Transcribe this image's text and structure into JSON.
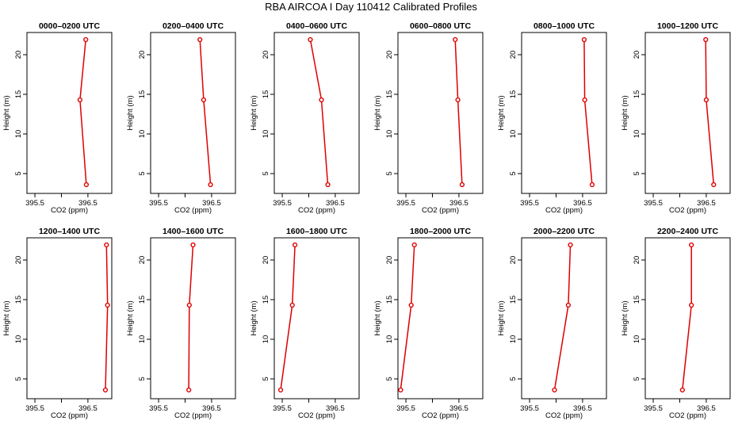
{
  "title": "RBA AIRCOA I  Day 110412  Calibrated Profiles",
  "xlabel": "CO2 (ppm)",
  "ylabel": "Height (m)",
  "line_color": "#dd0000",
  "chart_data": {
    "type": "line",
    "xlim": [
      395.35,
      396.95
    ],
    "ylim": [
      2.5,
      22.8
    ],
    "xticks": [
      395.5,
      396,
      396.5
    ],
    "xtick_labels": [
      "395.5",
      "",
      "396.5"
    ],
    "yticks": [
      5,
      10,
      15,
      20
    ],
    "ytick_labels": [
      "5",
      "10",
      "15",
      "20"
    ],
    "panels": [
      {
        "title": "0000–0200 UTC",
        "co2": [
          396.47,
          396.35,
          396.46
        ],
        "height": [
          3.6,
          14.3,
          21.9
        ]
      },
      {
        "title": "0200–0400 UTC",
        "co2": [
          396.48,
          396.35,
          396.28
        ],
        "height": [
          3.6,
          14.3,
          21.9
        ]
      },
      {
        "title": "0400–0600 UTC",
        "co2": [
          396.36,
          396.24,
          396.03
        ],
        "height": [
          3.6,
          14.3,
          21.9
        ]
      },
      {
        "title": "0600–0800 UTC",
        "co2": [
          396.56,
          396.48,
          396.43
        ],
        "height": [
          3.6,
          14.3,
          21.9
        ]
      },
      {
        "title": "0800–1000 UTC",
        "co2": [
          396.68,
          396.54,
          396.53
        ],
        "height": [
          3.6,
          14.3,
          21.9
        ]
      },
      {
        "title": "1000–1200 UTC",
        "co2": [
          396.64,
          396.5,
          396.49
        ],
        "height": [
          3.6,
          14.3,
          21.9
        ]
      },
      {
        "title": "1200–1400 UTC",
        "co2": [
          396.83,
          396.87,
          396.85
        ],
        "height": [
          3.6,
          14.3,
          21.9
        ]
      },
      {
        "title": "1400–1600 UTC",
        "co2": [
          396.07,
          396.08,
          396.15
        ],
        "height": [
          3.6,
          14.3,
          21.9
        ]
      },
      {
        "title": "1600–1800 UTC",
        "co2": [
          395.47,
          395.69,
          395.74
        ],
        "height": [
          3.6,
          14.3,
          21.9
        ]
      },
      {
        "title": "1800–2000 UTC",
        "co2": [
          395.4,
          395.6,
          395.66
        ],
        "height": [
          3.6,
          14.3,
          21.9
        ]
      },
      {
        "title": "2000–2200 UTC",
        "co2": [
          395.97,
          396.23,
          396.27
        ],
        "height": [
          3.6,
          14.3,
          21.9
        ]
      },
      {
        "title": "2200–2400 UTC",
        "co2": [
          396.05,
          396.22,
          396.22
        ],
        "height": [
          3.6,
          14.3,
          21.9
        ]
      }
    ]
  }
}
